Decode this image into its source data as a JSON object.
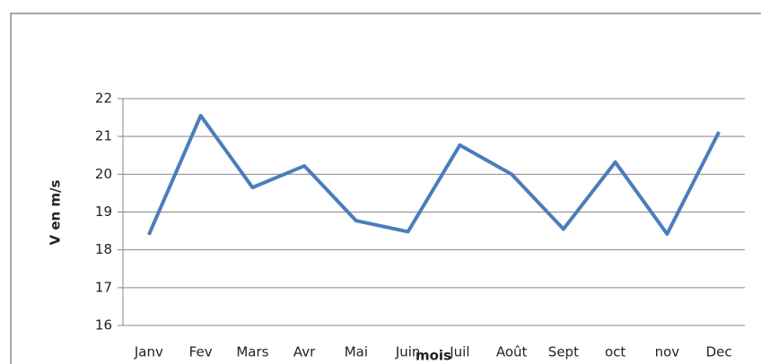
{
  "chart_data": {
    "type": "line",
    "categories": [
      "Janv",
      "Fev",
      "Mars",
      "Avr",
      "Mai",
      "Juin",
      "Juil",
      "Août",
      "Sept",
      "oct",
      "nov",
      "Dec"
    ],
    "series": [
      {
        "name": "V",
        "color": "#4a7ebb",
        "values": [
          18.4,
          21.55,
          19.65,
          20.22,
          18.77,
          18.48,
          20.77,
          20.0,
          18.55,
          20.32,
          18.42,
          21.12
        ]
      }
    ],
    "ylim": [
      16,
      22
    ],
    "yticks": [
      16,
      17,
      18,
      19,
      20,
      21,
      22
    ],
    "grid": true,
    "ylabel": "V en m/s",
    "xlabel": "mois"
  }
}
